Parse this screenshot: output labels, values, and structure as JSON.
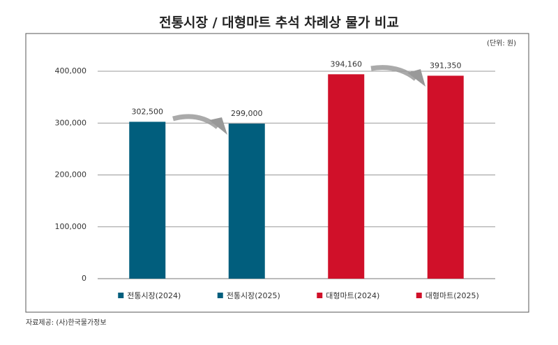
{
  "chart_data": {
    "type": "bar",
    "title": "전통시장 / 대형마트 추석 차례상 물가 비교",
    "unit_label": "(단위: 원)",
    "source": "자료제공: (사)한국물가정보",
    "categories": [
      "전통시장(2024)",
      "전통시장(2025)",
      "대형마트(2024)",
      "대형마트(2025)"
    ],
    "values": [
      302500,
      299000,
      394160,
      391350
    ],
    "value_labels": [
      "302,500",
      "299,000",
      "394,160",
      "391,350"
    ],
    "colors": [
      "#015e7d",
      "#015e7d",
      "#d01029",
      "#d01029"
    ],
    "ylim": [
      0,
      400000
    ],
    "yticks": [
      0,
      {
        "value": 100000,
        "label": "100,000"
      },
      {
        "value": 200000,
        "label": "200,000"
      },
      {
        "value": 300000,
        "label": "300,000"
      },
      {
        "value": 400000,
        "label": "400,000"
      }
    ],
    "grid": true
  }
}
